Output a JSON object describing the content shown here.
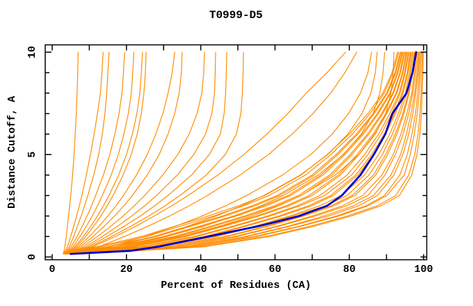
{
  "window": {
    "background": "#ffffff"
  },
  "chart_data": {
    "type": "line",
    "title": "T0999-D5",
    "xlabel": "Percent of Residues (CA)",
    "ylabel": "Distance Cutoff, A",
    "xlim": [
      0,
      100
    ],
    "ylim": [
      0,
      10
    ],
    "x_tick_interval": 10,
    "x_labeled_ticks": [
      0,
      20,
      40,
      60,
      80,
      100
    ],
    "y_tick_interval": 1,
    "y_labeled_ticks": [
      0,
      5,
      10
    ],
    "grid": false,
    "legend": false,
    "colors": {
      "prediction": "#ff8c00",
      "highlighted_prediction": "#0000cd",
      "axis": "#000000",
      "background": "#ffffff"
    },
    "cutoffs": [
      0.15,
      0.3,
      0.5,
      1,
      1.5,
      2,
      2.5,
      3,
      4,
      5,
      6,
      7,
      8,
      9,
      10
    ],
    "series": [
      {
        "name": "outlier-01",
        "color": "prediction",
        "x": [
          3,
          3.2,
          3.4,
          3.8,
          4.1,
          4.4,
          4.7,
          5.0,
          5.5,
          5.9,
          6.2,
          6.5,
          6.7,
          6.9,
          7
        ]
      },
      {
        "name": "outlier-02",
        "color": "prediction",
        "x": [
          3.1,
          3.6,
          4.1,
          5.0,
          5.8,
          6.6,
          7.3,
          8.0,
          9.2,
          10.3,
          11.3,
          12.2,
          13,
          13.4,
          13.7
        ]
      },
      {
        "name": "outlier-03",
        "color": "prediction",
        "x": [
          3.3,
          3.9,
          4.6,
          5.8,
          6.8,
          7.8,
          8.7,
          9.6,
          11.2,
          12.5,
          13.5,
          14.2,
          14.7,
          15,
          15.3
        ]
      },
      {
        "name": "outlier-04",
        "color": "prediction",
        "x": [
          3.5,
          4.2,
          5.1,
          6.7,
          8.1,
          9.4,
          10.6,
          11.7,
          13.8,
          15.5,
          16.9,
          18,
          18.8,
          19.2,
          19.5
        ]
      },
      {
        "name": "outlier-05",
        "color": "prediction",
        "x": [
          3.6,
          4.5,
          5.6,
          7.5,
          9.2,
          10.8,
          12.2,
          13.5,
          15.9,
          17.8,
          19.3,
          20.5,
          21.3,
          21.7,
          22
        ]
      },
      {
        "name": "outlier-06",
        "color": "prediction",
        "x": [
          3.8,
          4.8,
          6.1,
          8.4,
          10.4,
          12.2,
          13.8,
          15.3,
          17.9,
          20,
          21.6,
          22.8,
          23.6,
          24,
          24.3
        ]
      },
      {
        "name": "outlier-07",
        "color": "prediction",
        "x": [
          4,
          5.1,
          6.5,
          9,
          11.2,
          13.1,
          14.8,
          16.4,
          19.1,
          21.3,
          22.9,
          24,
          24.7,
          25.1,
          25.3
        ]
      },
      {
        "name": "outlier-08",
        "color": "prediction",
        "x": [
          4.2,
          5.4,
          7,
          10,
          12.6,
          15,
          17.2,
          19.2,
          22.7,
          25.6,
          27.9,
          29.8,
          31.2,
          32.3,
          33
        ]
      },
      {
        "name": "outlier-09",
        "color": "prediction",
        "x": [
          4.4,
          5.8,
          7.6,
          11,
          14,
          16.8,
          19.3,
          21.6,
          25.6,
          28.8,
          31.2,
          33,
          34.2,
          34.8,
          35
        ]
      },
      {
        "name": "outlier-10",
        "color": "prediction",
        "x": [
          4.6,
          6.2,
          8.3,
          12.2,
          15.8,
          19.1,
          22.1,
          24.9,
          29.8,
          33.8,
          36.9,
          39,
          40.3,
          40.8,
          41
        ]
      },
      {
        "name": "outlier-11",
        "color": "prediction",
        "x": [
          4.8,
          6.6,
          9,
          13.5,
          17.6,
          21.4,
          24.9,
          28.1,
          33.7,
          38.1,
          41.3,
          43,
          43.7,
          43.9,
          44
        ]
      },
      {
        "name": "outlier-12",
        "color": "prediction",
        "x": [
          5,
          7,
          9.7,
          14.7,
          19.4,
          23.7,
          27.6,
          31.2,
          37.5,
          42.3,
          45.3,
          46.3,
          46.7,
          46.9,
          47
        ]
      },
      {
        "name": "outlier-13",
        "color": "prediction",
        "x": [
          5.2,
          7.4,
          10.4,
          16,
          21.2,
          26,
          30.4,
          34.4,
          41.5,
          46.6,
          49.6,
          50.8,
          51.2,
          51.4,
          51.5
        ]
      },
      {
        "name": "mid-01",
        "color": "prediction",
        "x": [
          6,
          8,
          11,
          17,
          22.5,
          27.5,
          32.2,
          36.6,
          44.6,
          51.6,
          57.8,
          63.4,
          68.4,
          74,
          79
        ]
      },
      {
        "name": "mid-02",
        "color": "prediction",
        "x": [
          6.5,
          9,
          12.5,
          19.5,
          25.8,
          31.6,
          36.9,
          41.8,
          50.6,
          58.2,
          64.6,
          70.2,
          75,
          78.8,
          82
        ]
      },
      {
        "name": "mid-03",
        "color": "prediction",
        "x": [
          7,
          10.5,
          15.5,
          25,
          33.2,
          40.4,
          46.7,
          52.4,
          62,
          69.6,
          75.4,
          79.8,
          83,
          85,
          86
        ]
      },
      {
        "name": "mid-04",
        "color": "prediction",
        "x": [
          7.5,
          11.5,
          17,
          27.5,
          36.4,
          44.2,
          51,
          57,
          66.8,
          74.2,
          79.6,
          83.4,
          85.8,
          87,
          87.5
        ]
      },
      {
        "name": "mid-05",
        "color": "prediction",
        "x": [
          8,
          12.5,
          19,
          31,
          40.8,
          49.2,
          56.2,
          62.2,
          71.6,
          78.4,
          83.2,
          86.4,
          88.2,
          89.1,
          89.5
        ]
      },
      {
        "name": "mid-06",
        "color": "prediction",
        "x": [
          8.5,
          13.5,
          21,
          34.5,
          45,
          53.8,
          61,
          67,
          76.2,
          82.6,
          87,
          89.8,
          91.2,
          91.8,
          92
        ]
      },
      {
        "name": "bundle-01",
        "color": "prediction",
        "x": [
          6,
          22.5,
          41,
          58.5,
          70.5,
          80.5,
          88.5,
          93.5,
          96.8,
          98.2,
          99,
          99.4,
          99.6,
          99.8,
          99.9
        ]
      },
      {
        "name": "bundle-02",
        "color": "prediction",
        "x": [
          5.8,
          21,
          39.5,
          57.5,
          69.5,
          79.5,
          87.5,
          92.5,
          96,
          97.6,
          98.5,
          99,
          99.3,
          99.5,
          99.7
        ]
      },
      {
        "name": "bundle-03",
        "color": "prediction",
        "x": [
          5.8,
          20.7,
          37.8,
          55.3,
          67,
          77.3,
          85,
          90.1,
          94.8,
          96.4,
          97.5,
          98.3,
          98.8,
          99.1,
          99.4
        ]
      },
      {
        "name": "bundle-04",
        "color": "prediction",
        "x": [
          5.7,
          20.5,
          37,
          54.5,
          66.5,
          76.5,
          84.5,
          89.5,
          93.6,
          95.6,
          96.9,
          97.8,
          98.4,
          98.8,
          99.1
        ]
      },
      {
        "name": "bundle-05",
        "color": "prediction",
        "x": [
          5.5,
          19.4,
          35.5,
          52.6,
          64.1,
          74.5,
          82.5,
          87.6,
          92,
          94.4,
          96,
          97.1,
          97.9,
          98.5,
          98.8
        ]
      },
      {
        "name": "bundle-06",
        "color": "prediction",
        "x": [
          5.4,
          19,
          35,
          52,
          63.5,
          73.2,
          81.2,
          86.5,
          91.2,
          93.8,
          95.4,
          96.6,
          97.6,
          98.2,
          98.6
        ]
      },
      {
        "name": "bundle-07",
        "color": "prediction",
        "x": [
          5.3,
          18.2,
          33.3,
          49.8,
          61.1,
          70.9,
          79.3,
          85,
          89.6,
          92.4,
          94.5,
          96,
          97.1,
          97.8,
          98.3
        ]
      },
      {
        "name": "bundle-08",
        "color": "prediction",
        "x": [
          5.1,
          17.8,
          32.8,
          49,
          60.5,
          70,
          78.2,
          83.6,
          88.8,
          91.8,
          93.9,
          95.5,
          96.8,
          97.5,
          98
        ]
      },
      {
        "name": "bundle-09",
        "color": "prediction",
        "x": [
          5,
          16.9,
          31,
          47.1,
          58.2,
          67.8,
          75.8,
          81.5,
          87.1,
          90.3,
          92.8,
          94.7,
          96.1,
          97.1,
          97.7
        ]
      },
      {
        "name": "bundle-10",
        "color": "prediction",
        "x": [
          4.9,
          16.5,
          30.5,
          46.5,
          57.5,
          67,
          75,
          80.8,
          86.5,
          89.8,
          92.4,
          94.4,
          95.9,
          96.9,
          97.5
        ]
      },
      {
        "name": "bundle-11",
        "color": "prediction",
        "x": [
          4.8,
          15.6,
          28.8,
          44.4,
          55.2,
          64.8,
          73.6,
          79.4,
          85.3,
          88.9,
          91.6,
          93.7,
          95.5,
          96.5,
          97.2
        ]
      },
      {
        "name": "bundle-12",
        "color": "prediction",
        "x": [
          4.7,
          15.2,
          28,
          43.5,
          54.5,
          64,
          72,
          77.9,
          84.1,
          87.9,
          90.9,
          93.2,
          95.1,
          96.2,
          96.9
        ]
      },
      {
        "name": "bundle-13",
        "color": "prediction",
        "x": [
          4.6,
          14.3,
          26.6,
          41.7,
          52.2,
          61.8,
          69.8,
          75.7,
          82.3,
          86.5,
          89.8,
          92.4,
          94.5,
          95.8,
          96.6
        ]
      },
      {
        "name": "bundle-14",
        "color": "prediction",
        "x": [
          4.5,
          13.9,
          25.9,
          40.9,
          51.5,
          61,
          69,
          75,
          81.7,
          86,
          89.4,
          92.1,
          94.2,
          95.6,
          96.4
        ]
      },
      {
        "name": "bundle-15",
        "color": "prediction",
        "x": [
          4.3,
          13,
          24.3,
          39,
          49.3,
          58.7,
          66.7,
          73.4,
          80.6,
          85,
          88.6,
          91.4,
          93.7,
          95.1,
          96.1
        ]
      },
      {
        "name": "bundle-16",
        "color": "prediction",
        "x": [
          4.2,
          12.6,
          23.7,
          38.2,
          48.5,
          58,
          66,
          72.1,
          79.4,
          84.1,
          87.9,
          90.9,
          93.4,
          94.9,
          95.8
        ]
      },
      {
        "name": "bundle-17",
        "color": "prediction",
        "x": [
          4.1,
          11.8,
          22.1,
          36.2,
          46.3,
          55.7,
          63.7,
          70,
          77.6,
          82.6,
          86.8,
          90.1,
          92.8,
          94.5,
          95.5
        ]
      },
      {
        "name": "bundle-18",
        "color": "prediction",
        "x": [
          4,
          11.4,
          21.5,
          35.5,
          45.5,
          55,
          63,
          69.2,
          77,
          82.1,
          86.4,
          89.8,
          92.6,
          94.3,
          95.3
        ]
      },
      {
        "name": "bundle-19",
        "color": "prediction",
        "x": [
          3.9,
          10.5,
          19.8,
          33.5,
          43.4,
          52.6,
          60.6,
          67.1,
          75.3,
          80.7,
          85.3,
          89,
          91.9,
          93.8,
          95
        ]
      },
      {
        "name": "bundle-20",
        "color": "prediction",
        "x": [
          3.7,
          10,
          19.2,
          32.8,
          42.6,
          51.8,
          59.8,
          66.3,
          74.7,
          80.2,
          84.9,
          88.7,
          91.7,
          93.6,
          94.7
        ]
      },
      {
        "name": "bundle-21",
        "color": "prediction",
        "x": [
          3.6,
          9.2,
          17.6,
          30.8,
          40.4,
          49.6,
          57.6,
          64.2,
          72.9,
          78.8,
          83.8,
          87.8,
          91.1,
          93.1,
          94.4
        ]
      },
      {
        "name": "bundle-22",
        "color": "prediction",
        "x": [
          3.5,
          8.8,
          16.9,
          29.9,
          39.6,
          48.8,
          56.8,
          63.5,
          72.3,
          78.3,
          83.4,
          87.5,
          90.9,
          92.9,
          94.2
        ]
      },
      {
        "name": "bundle-23",
        "color": "prediction",
        "x": [
          3.4,
          7.9,
          15.4,
          28.1,
          37.4,
          46.6,
          54.6,
          61.3,
          70.6,
          76.9,
          82.3,
          86.7,
          90.3,
          92.5,
          93.9
        ]
      },
      {
        "name": "bundle-24",
        "color": "prediction",
        "x": [
          3.3,
          7.5,
          14.7,
          27.3,
          36.7,
          45.8,
          53.8,
          60.6,
          70,
          76.4,
          81.9,
          86.4,
          90,
          92.3,
          93.7
        ]
      },
      {
        "name": "bundle-25",
        "color": "prediction",
        "x": [
          3.1,
          6.6,
          13.1,
          25.4,
          34.5,
          43.5,
          51.5,
          58.4,
          68.2,
          75,
          80.8,
          85.6,
          89.4,
          91.8,
          93.3
        ]
      },
      {
        "name": "bundle-26",
        "color": "prediction",
        "x": [
          3,
          6,
          12,
          24,
          33,
          42,
          50.2,
          57.2,
          67,
          74,
          80,
          85,
          89,
          91.5,
          93
        ]
      },
      {
        "name": "highlighted-model",
        "color": "highlighted_prediction",
        "x": [
          5,
          21,
          28.5,
          42,
          55.5,
          66.5,
          74,
          78,
          83,
          86.6,
          89.7,
          91.6,
          95.4,
          97,
          98
        ]
      }
    ]
  }
}
